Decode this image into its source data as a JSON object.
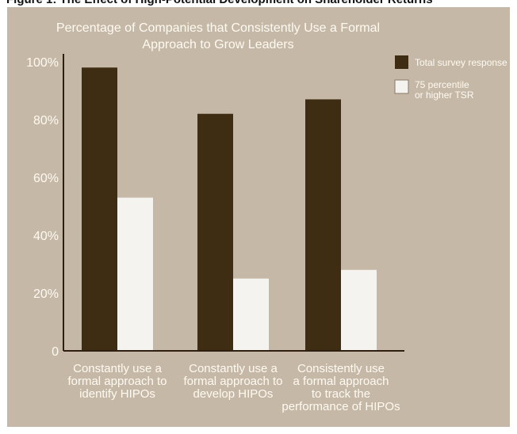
{
  "figure_header": "Figure 1: The Effect of High-Potential Development on Shareholder Returns",
  "colors": {
    "panel_background": "#c6b8a6",
    "text": "#fffaf2",
    "axis": "#2e1f10",
    "series_total": "#3e2c13",
    "series_75": "#f4f3f0"
  },
  "chart_data": {
    "type": "bar",
    "title": "Percentage of Companies that Consistently Use a Formal Approach to Grow Leaders",
    "title_lines": [
      "Percentage of Companies that Consistently Use a Formal",
      "Approach to Grow Leaders"
    ],
    "categories": [
      [
        "Constantly use a",
        "formal approach to",
        "identify HIPOs"
      ],
      [
        "Constantly use a",
        "formal approach to",
        "develop HIPOs"
      ],
      [
        "Consistently use",
        "a formal approach",
        "to track the",
        "performance of HIPOs"
      ]
    ],
    "series": [
      {
        "name": "Total survey response",
        "legend_lines": [
          "Total survey response"
        ],
        "values": [
          98,
          82,
          87
        ]
      },
      {
        "name": "75 percentile or higher TSR",
        "legend_lines": [
          "75 percentile",
          "or higher TSR"
        ],
        "values": [
          53,
          25,
          28
        ]
      }
    ],
    "y_ticks": [
      {
        "value": 0,
        "label": "0"
      },
      {
        "value": 20,
        "label": "20%"
      },
      {
        "value": 40,
        "label": "40%"
      },
      {
        "value": 60,
        "label": "60%"
      },
      {
        "value": 80,
        "label": "80%"
      },
      {
        "value": 100,
        "label": "100%"
      }
    ],
    "ylim": [
      0,
      100
    ],
    "xlabel": "",
    "ylabel": "",
    "grid": false,
    "legend_position": "top-right"
  }
}
